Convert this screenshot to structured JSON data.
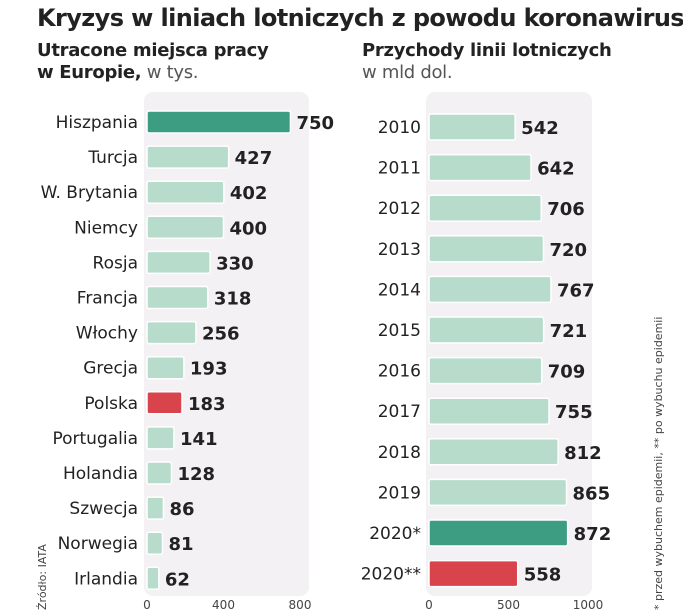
{
  "title": "Kryzys w liniach lotniczych z powodu koronawirusa",
  "left": {
    "subtitle_bold_1": "Utracone miejsca pracy",
    "subtitle_bold_2": "w Europie,",
    "subtitle_light": " w tys."
  },
  "right": {
    "subtitle_bold": "Przychody linii lotniczych",
    "subtitle_light": "w mld dol."
  },
  "source_note": "Źródło: IATA",
  "footnote": "* przed wybuchem epidemii, ** po wybuchu epidemii",
  "colors": {
    "bar_default": "#b7dccc",
    "bar_highlight_green": "#3d9d83",
    "bar_highlight_red": "#d8434c",
    "panel_bg": "#f3f1f3"
  },
  "chart_data": [
    {
      "type": "bar",
      "orientation": "horizontal",
      "title": "Utracone miejsca pracy w Europie, w tys.",
      "categories": [
        "Hiszpania",
        "Turcja",
        "W. Brytania",
        "Niemcy",
        "Rosja",
        "Francja",
        "Włochy",
        "Grecja",
        "Polska",
        "Portugalia",
        "Holandia",
        "Szwecja",
        "Norwegia",
        "Irlandia"
      ],
      "values": [
        750,
        427,
        402,
        400,
        330,
        318,
        256,
        193,
        183,
        141,
        128,
        86,
        81,
        62
      ],
      "highlight": {
        "Hiszpania": "green",
        "Polska": "red"
      },
      "xlim": [
        0,
        800
      ],
      "xticks": [
        0,
        400,
        800
      ]
    },
    {
      "type": "bar",
      "orientation": "horizontal",
      "title": "Przychody linii lotniczych w mld dol.",
      "categories": [
        "2010",
        "2011",
        "2012",
        "2013",
        "2014",
        "2015",
        "2016",
        "2017",
        "2018",
        "2019",
        "2020*",
        "2020**"
      ],
      "values": [
        542,
        642,
        706,
        720,
        767,
        721,
        709,
        755,
        812,
        865,
        872,
        558
      ],
      "highlight": {
        "2020*": "green",
        "2020**": "red"
      },
      "xlim": [
        0,
        1000
      ],
      "xticks": [
        0,
        500,
        1000
      ]
    }
  ]
}
